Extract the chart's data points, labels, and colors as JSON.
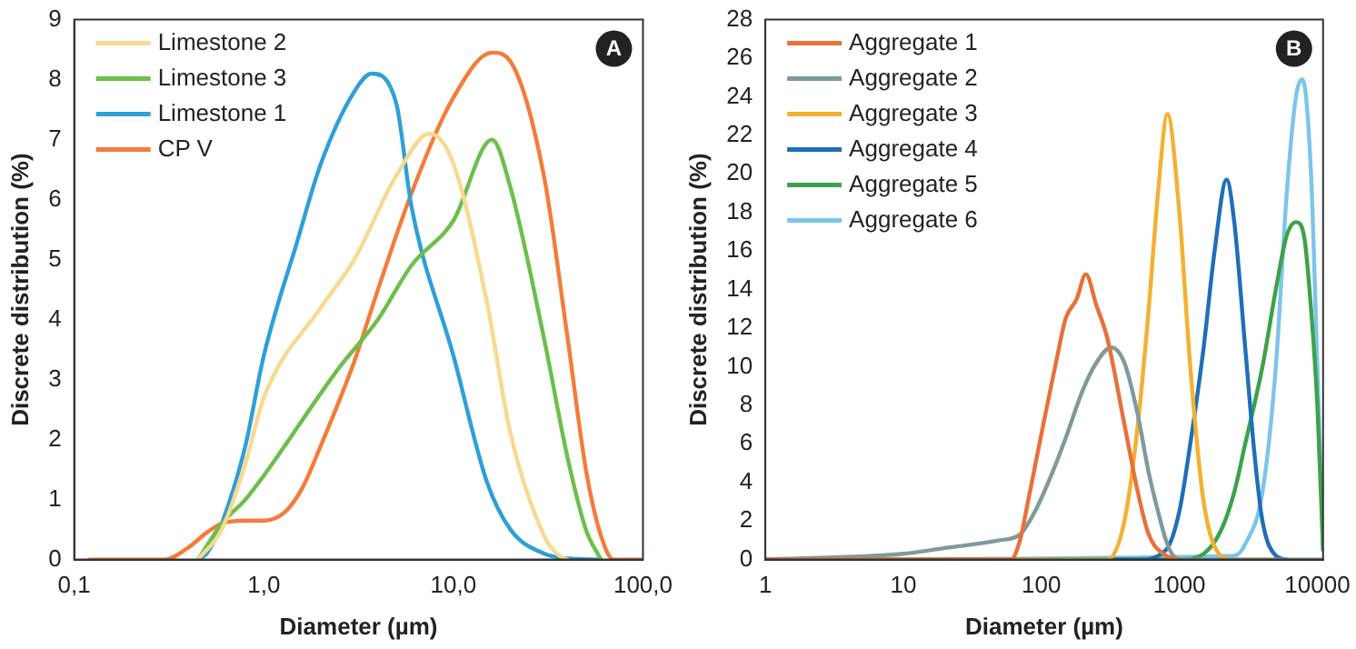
{
  "chart_data": [
    {
      "type": "line",
      "xlabel": "Diameter (µm)",
      "ylabel": "Discrete distribution (%)",
      "log": "x",
      "grid": false,
      "legend": "top left",
      "marker": "none",
      "line_style": "solid",
      "annotations": [
        "A"
      ],
      "xlim": [
        0.1,
        100
      ],
      "xticks": [
        {
          "value": 0.1,
          "label": "0,1"
        },
        {
          "value": 1,
          "label": "1,0"
        },
        {
          "value": 10,
          "label": "10,0"
        },
        {
          "value": 100,
          "label": "100,0"
        }
      ],
      "ylim": [
        0,
        9
      ],
      "yticks": [
        0,
        1,
        2,
        3,
        4,
        5,
        6,
        7,
        8,
        9
      ],
      "series": [
        {
          "name": "Limestone 2",
          "color": "#f9d98f",
          "x": [
            0.45,
            0.6,
            0.8,
            1,
            2,
            3,
            5,
            7.5,
            10,
            15,
            20,
            30,
            35,
            40
          ],
          "values": [
            0,
            0.5,
            1.6,
            2.7,
            4.2,
            5,
            6.4,
            7.1,
            6.6,
            4.3,
            2.1,
            0.4,
            0.1,
            0
          ]
        },
        {
          "name": "Limestone 3",
          "color": "#6cbf4a",
          "x": [
            0.45,
            0.6,
            0.8,
            1,
            2.5,
            4,
            6,
            10,
            16,
            20,
            30,
            40,
            50,
            60
          ],
          "values": [
            0,
            0.6,
            1,
            1.4,
            3.2,
            4,
            4.9,
            5.65,
            7,
            6.2,
            3.7,
            1.7,
            0.5,
            0
          ]
        },
        {
          "name": "Limestone 1",
          "color": "#2e9fd8",
          "x": [
            0.45,
            0.5,
            0.6,
            0.8,
            1,
            1.5,
            2,
            3,
            3.7,
            5,
            6,
            10,
            15,
            20,
            30,
            40,
            60
          ],
          "values": [
            0,
            0.1,
            0.6,
            1.9,
            3.4,
            5.3,
            6.6,
            7.8,
            8.1,
            7.6,
            5.9,
            3.4,
            1.3,
            0.5,
            0.1,
            0.02,
            0
          ]
        },
        {
          "name": "CP V",
          "color": "#f47b3a",
          "x": [
            0.12,
            0.3,
            0.4,
            0.5,
            0.6,
            0.8,
            1,
            1.3,
            1.6,
            2,
            3,
            4,
            6,
            10,
            16,
            20,
            30,
            40,
            50,
            60,
            70,
            100
          ],
          "values": [
            0,
            0,
            0.2,
            0.45,
            0.6,
            0.65,
            0.65,
            0.8,
            1.2,
            1.9,
            3.3,
            4.5,
            6.1,
            7.7,
            8.45,
            8.3,
            6.4,
            3.7,
            1.5,
            0.4,
            0,
            0
          ]
        }
      ]
    },
    {
      "type": "line",
      "xlabel": "Diameter (µm)",
      "ylabel": "Discrete distribution (%)",
      "log": "x",
      "grid": false,
      "legend": "top left",
      "marker": "none",
      "line_style": "solid",
      "annotations": [
        "B"
      ],
      "xlim": [
        1,
        11000
      ],
      "xticks": [
        1,
        10,
        100,
        1000,
        10000
      ],
      "ylim": [
        0,
        28
      ],
      "yticks": [
        0,
        2,
        4,
        6,
        8,
        10,
        12,
        14,
        16,
        18,
        20,
        22,
        24,
        26,
        28
      ],
      "series": [
        {
          "name": "Aggregate 1",
          "color": "#e8703a",
          "x": [
            1,
            60,
            70,
            80,
            100,
            130,
            150,
            180,
            210,
            250,
            300,
            400,
            500,
            600,
            800,
            1000
          ],
          "values": [
            0,
            0,
            1,
            3,
            6.5,
            10.5,
            12.5,
            13.5,
            14.8,
            13.2,
            11.5,
            7,
            3.5,
            1.3,
            0.2,
            0
          ]
        },
        {
          "name": "Aggregate 2",
          "color": "#7f9a9a",
          "x": [
            1,
            10,
            20,
            50,
            70,
            90,
            120,
            150,
            200,
            250,
            320,
            400,
            500,
            600,
            700,
            800,
            900,
            1000,
            11000
          ],
          "values": [
            0,
            0.3,
            0.6,
            1,
            1.3,
            2.5,
            4.5,
            6.3,
            8.8,
            10.2,
            11,
            10.2,
            7.5,
            4.5,
            2.5,
            1,
            0.2,
            0,
            0
          ]
        },
        {
          "name": "Aggregate 3",
          "color": "#f4b030",
          "x": [
            1,
            300,
            400,
            500,
            600,
            700,
            820,
            1000,
            1200,
            1500,
            2000,
            2500,
            5000
          ],
          "values": [
            0,
            0,
            2,
            7,
            13,
            19,
            23.1,
            18,
            10,
            3,
            0.2,
            0,
            0
          ]
        },
        {
          "name": "Aggregate 4",
          "color": "#1f6fb8",
          "x": [
            1,
            500,
            800,
            1000,
            1200,
            1500,
            1800,
            2200,
            2500,
            3000,
            3500,
            4000,
            5000,
            6000
          ],
          "values": [
            0,
            0,
            0.5,
            2.5,
            6,
            11,
            16,
            19.7,
            17.5,
            11,
            5.5,
            2,
            0.2,
            0
          ]
        },
        {
          "name": "Aggregate 5",
          "color": "#3da24a",
          "x": [
            1,
            1000,
            1500,
            2000,
            2500,
            3000,
            4000,
            5000,
            6000,
            7000,
            8000,
            9000,
            10000,
            11000
          ],
          "values": [
            0,
            0,
            0.3,
            1.5,
            3.5,
            6,
            10,
            14,
            16.8,
            17.5,
            16.8,
            13,
            8,
            0.5
          ]
        },
        {
          "name": "Aggregate 6",
          "color": "#7cc4ea",
          "x": [
            1,
            2500,
            3000,
            4000,
            5000,
            6000,
            7000,
            7800,
            9000,
            10000,
            11000
          ],
          "values": [
            0,
            0.2,
            0.8,
            3.5,
            10,
            19,
            24,
            24.9,
            20,
            10,
            0.5
          ]
        }
      ]
    }
  ]
}
